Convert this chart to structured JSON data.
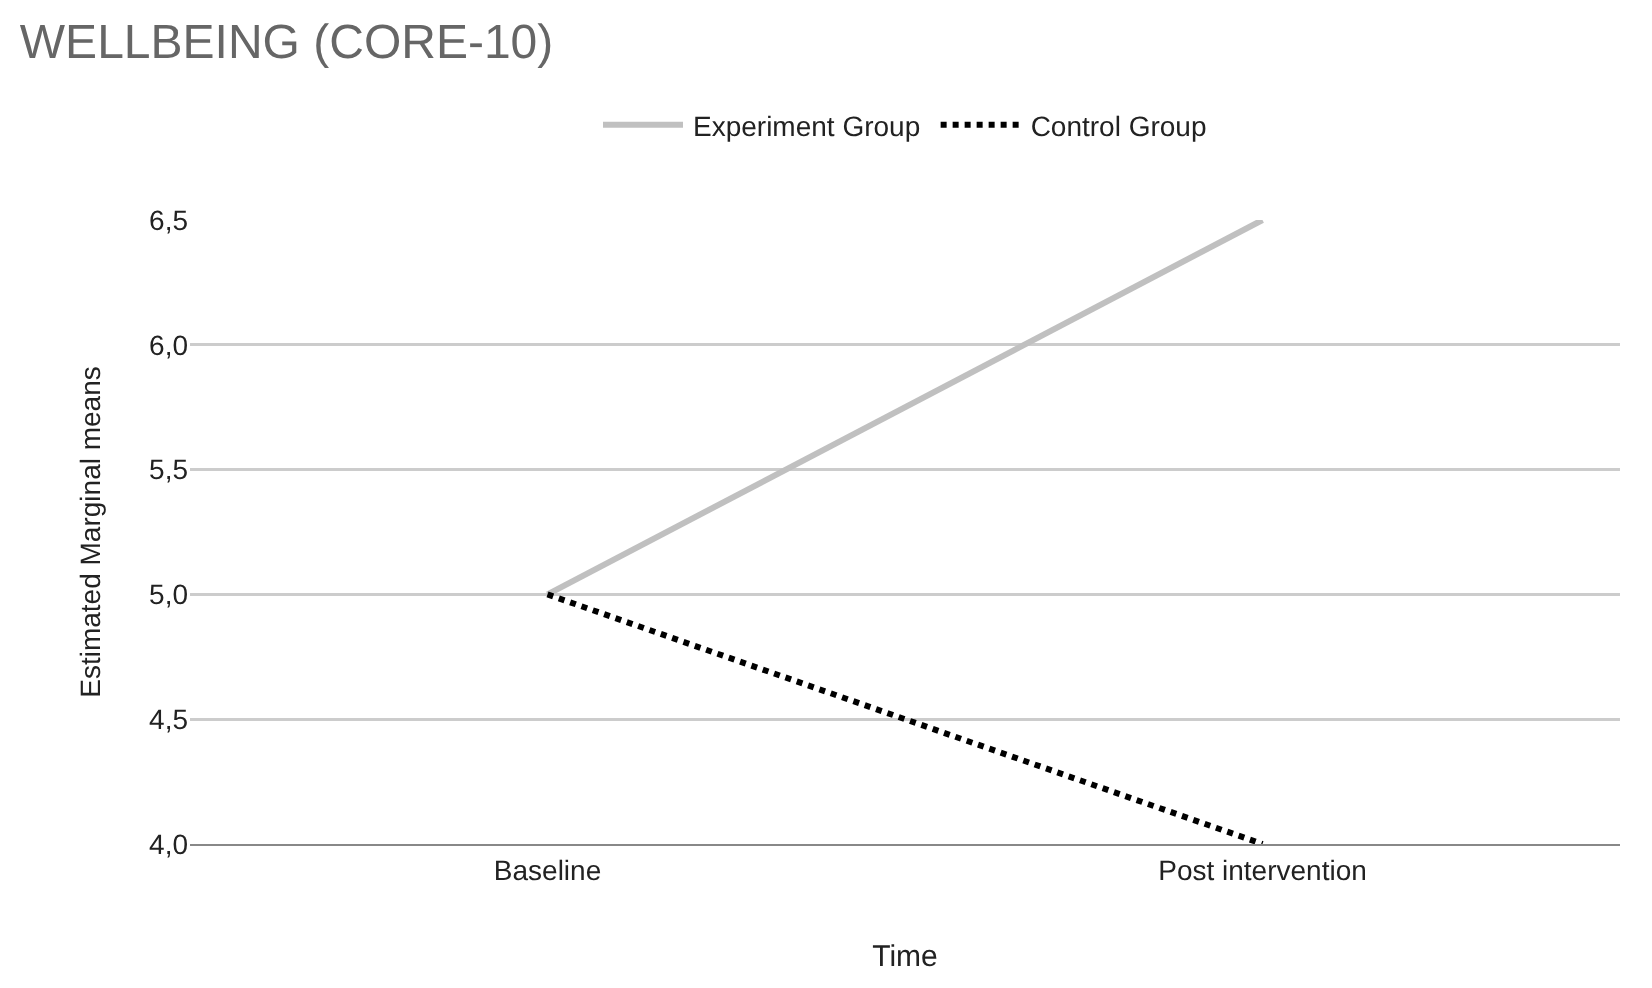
{
  "chart_data": {
    "type": "line",
    "title": "WELLBEING (CORE-10)",
    "xlabel": "Time",
    "ylabel": "Estimated Marginal means",
    "categories": [
      "Baseline",
      "Post intervention"
    ],
    "series": [
      {
        "name": "Experiment Group",
        "color": "#c0c0c0",
        "values": [
          5.0,
          6.5
        ],
        "line_style": "solid"
      },
      {
        "name": "Control Group",
        "color": "#000000",
        "values": [
          5.0,
          4.0
        ],
        "line_style": "dotted"
      }
    ],
    "ylim": [
      4,
      6.5
    ],
    "yticks": [
      {
        "value": 4,
        "label": "4,0"
      },
      {
        "value": 4.5,
        "label": "4,5"
      },
      {
        "value": 5,
        "label": "5,0"
      },
      {
        "value": 5.5,
        "label": "5,5"
      },
      {
        "value": 6,
        "label": "6,0"
      },
      {
        "value": 6.5,
        "label": "6,5"
      }
    ],
    "grid": "y",
    "legend": "top",
    "marker": "none"
  }
}
